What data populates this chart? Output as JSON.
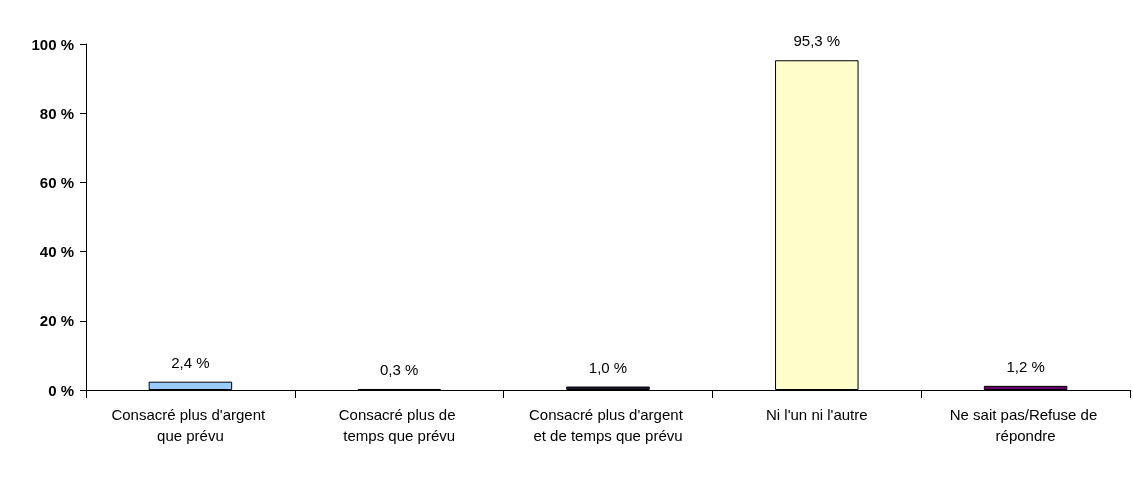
{
  "chart_data": {
    "type": "bar",
    "categories": [
      "Consacré plus d'argent que prévu",
      "Consacré plus de temps que prévu",
      "Consacré plus d'argent et de temps que prévu",
      "Ni l'un ni l'autre",
      "Ne sait pas/Refuse de répondre"
    ],
    "values": [
      2.4,
      0.3,
      1.0,
      95.3,
      1.2
    ],
    "colors": [
      "#99ccff",
      "#993366",
      "#1a1a33",
      "#ffffcc",
      "#660066"
    ],
    "value_labels": [
      "2,4 %",
      "0,3 %",
      "1,0 %",
      "95,3 %",
      "1,2 %"
    ],
    "ylim": [
      0,
      100
    ],
    "yticks": [
      {
        "value": 0,
        "label": "0 %"
      },
      {
        "value": 20,
        "label": "20 %"
      },
      {
        "value": 40,
        "label": "40 %"
      },
      {
        "value": 60,
        "label": "60 %"
      },
      {
        "value": 80,
        "label": "80 %"
      },
      {
        "value": 100,
        "label": "100 %"
      }
    ],
    "grid": false
  }
}
